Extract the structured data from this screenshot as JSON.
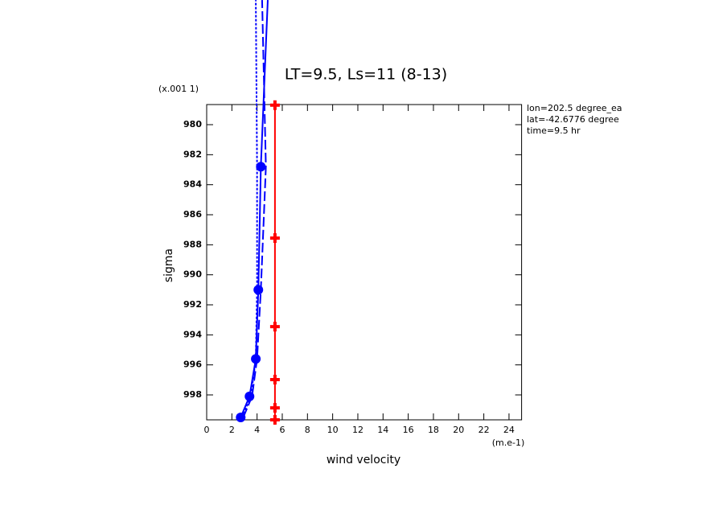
{
  "chart_data": {
    "type": "line",
    "title": "LT=9.5, Ls=11 (8-13)",
    "x_label": "wind velocity",
    "y_label": "sigma",
    "x_units": "(m.e-1)",
    "y_units": "(x.001 1)",
    "annotations": [
      "lon=202.5 degree_ea",
      "lat=-42.6776 degree",
      "time=9.5 hr"
    ],
    "xlim": [
      0,
      25
    ],
    "xticks": [
      0,
      2,
      4,
      6,
      8,
      10,
      12,
      14,
      16,
      18,
      20,
      22,
      24
    ],
    "ylim": [
      999.66,
      978.66
    ],
    "yticks": [
      980,
      982,
      984,
      986,
      988,
      990,
      992,
      994,
      996,
      998
    ],
    "series": [
      {
        "color": "#0000ff",
        "dash": "solid",
        "marker": "circle",
        "y": [
          999.5,
          998.1,
          995.6,
          991.0,
          982.8,
          971.7
        ],
        "values": [
          2.7,
          3.4,
          3.9,
          4.1,
          4.3,
          4.85
        ]
      },
      {
        "color": "#0000ff",
        "dash": "long",
        "marker": "none",
        "y": [
          999.5,
          998.1,
          995.6,
          991.0,
          982.8,
          971.7
        ],
        "values": [
          2.9,
          3.6,
          4.0,
          4.3,
          4.7,
          4.4
        ]
      },
      {
        "color": "#0000ff",
        "dash": "short",
        "marker": "none",
        "y": [
          999.5,
          998.1,
          995.6,
          991.0,
          982.8,
          971.7
        ],
        "values": [
          2.8,
          3.5,
          3.9,
          4.0,
          4.0,
          3.9
        ]
      },
      {
        "color": "#ff0000",
        "dash": "solid",
        "marker": "plus",
        "y": [
          978.7,
          987.55,
          993.45,
          996.98,
          998.86,
          999.66
        ],
        "values": [
          5.42,
          5.42,
          5.42,
          5.42,
          5.42,
          5.42
        ]
      }
    ]
  }
}
